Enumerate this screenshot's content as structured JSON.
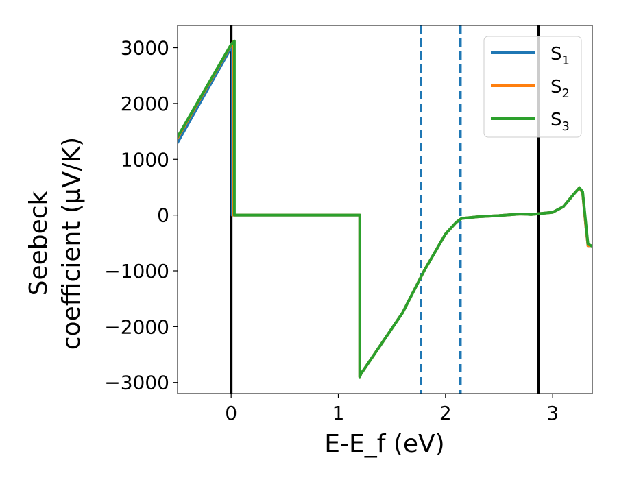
{
  "chart_data": {
    "type": "line",
    "xlabel": "E-E_f (eV)",
    "ylabel_lines": [
      "Seebeck",
      "coefficient  (μV/K)"
    ],
    "xlim": [
      -0.5,
      3.37
    ],
    "ylim": [
      -3200,
      3400
    ],
    "x_ticks": [
      {
        "value": 0,
        "label": "0"
      },
      {
        "value": 1,
        "label": "1"
      },
      {
        "value": 2,
        "label": "2"
      },
      {
        "value": 3,
        "label": "3"
      }
    ],
    "y_ticks": [
      {
        "value": 3000,
        "label": "3000"
      },
      {
        "value": 2000,
        "label": "2000"
      },
      {
        "value": 1000,
        "label": "1000"
      },
      {
        "value": 0,
        "label": "0"
      },
      {
        "value": -1000,
        "label": "−1000"
      },
      {
        "value": -2000,
        "label": "−2000"
      },
      {
        "value": -3000,
        "label": "−3000"
      }
    ],
    "grid": false,
    "legend_position": "top-right",
    "series": [
      {
        "name": "S1",
        "name_base": "S",
        "name_sub": "1",
        "color": "#1f77b4",
        "x": [
          -0.5,
          0.0,
          0.01,
          0.01,
          0.04,
          1.2,
          1.2,
          1.21,
          1.6,
          1.8,
          2.0,
          2.1,
          2.15,
          2.3,
          2.5,
          2.7,
          2.8,
          3.0,
          3.1,
          3.2,
          3.25,
          3.28,
          3.31,
          3.33,
          3.37
        ],
        "y": [
          1300,
          3000,
          3080,
          0,
          0,
          0,
          -2900,
          -2850,
          -1750,
          -1000,
          -340,
          -130,
          -60,
          -30,
          -10,
          20,
          10,
          50,
          150,
          380,
          490,
          400,
          -200,
          -550,
          -550
        ]
      },
      {
        "name": "S2",
        "name_base": "S",
        "name_sub": "2",
        "color": "#ff7f0e",
        "x": [
          -0.5,
          0.0,
          0.02,
          0.02,
          0.04,
          1.2,
          1.2,
          1.21,
          1.6,
          1.8,
          2.0,
          2.1,
          2.15,
          2.3,
          2.5,
          2.7,
          2.8,
          3.0,
          3.1,
          3.2,
          3.25,
          3.28,
          3.31,
          3.33,
          3.37
        ],
        "y": [
          1380,
          3050,
          3110,
          0,
          0,
          0,
          -2900,
          -2850,
          -1750,
          -1000,
          -340,
          -130,
          -60,
          -30,
          -10,
          20,
          10,
          50,
          150,
          380,
          490,
          400,
          -200,
          -550,
          -550
        ]
      },
      {
        "name": "S3",
        "name_base": "S",
        "name_sub": "3",
        "color": "#2ca02c",
        "x": [
          -0.5,
          0.0,
          0.03,
          0.03,
          0.04,
          1.2,
          1.2,
          1.21,
          1.6,
          1.8,
          2.0,
          2.1,
          2.15,
          2.3,
          2.5,
          2.7,
          2.8,
          3.0,
          3.1,
          3.2,
          3.25,
          3.28,
          3.31,
          3.33,
          3.37
        ],
        "y": [
          1400,
          3060,
          3120,
          0,
          0,
          0,
          -2900,
          -2850,
          -1750,
          -1000,
          -340,
          -130,
          -60,
          -30,
          -10,
          20,
          10,
          50,
          150,
          380,
          490,
          420,
          -150,
          -520,
          -560
        ]
      }
    ],
    "vertical_lines": [
      {
        "x": 0.0,
        "style": "solid",
        "color": "#000000"
      },
      {
        "x": 2.87,
        "style": "solid",
        "color": "#000000"
      },
      {
        "x": 1.77,
        "style": "dashed",
        "color": "#1f77b4"
      },
      {
        "x": 2.14,
        "style": "dashed",
        "color": "#1f77b4"
      }
    ]
  }
}
